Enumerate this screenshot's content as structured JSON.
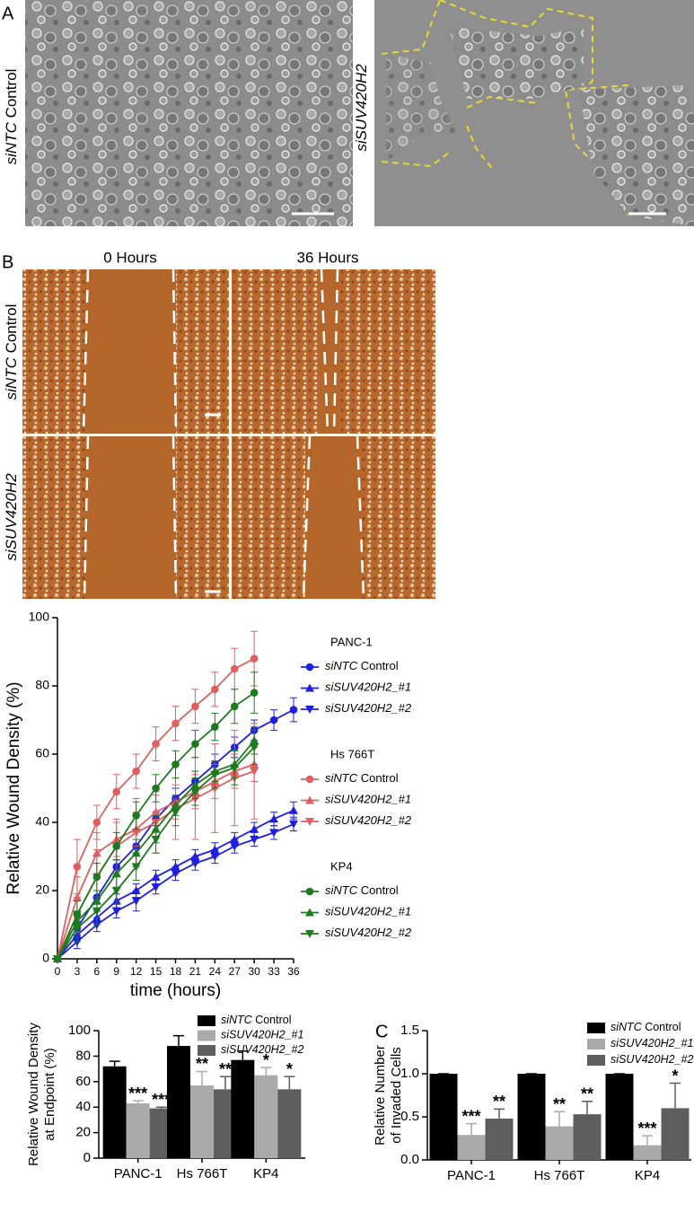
{
  "panel_labels": [
    "A",
    "B",
    "C"
  ],
  "panel_a": {
    "labels": [
      "siNTC Control",
      "siSUV420H2"
    ]
  },
  "panel_b": {
    "columns": [
      "0 Hours",
      "36 Hours"
    ],
    "rows": [
      "siNTC Control",
      "siSUV420H2"
    ]
  },
  "chart_data": [
    {
      "type": "line",
      "xlabel": "time (hours)",
      "ylabel": "Relative Wound Density (%)",
      "x": [
        0,
        3,
        6,
        9,
        12,
        15,
        18,
        21,
        24,
        27,
        30,
        33,
        36
      ],
      "xlim": [
        0,
        36
      ],
      "xticks": [
        0,
        3,
        6,
        9,
        12,
        15,
        18,
        21,
        24,
        27,
        30,
        33,
        36
      ],
      "ylim": [
        0,
        100
      ],
      "yticks": [
        0,
        20,
        40,
        60,
        80,
        100
      ],
      "groups": [
        {
          "name": "PANC-1",
          "series": [
            {
              "name": "siNTC Control",
              "color": "#1f1fe0",
              "marker": "circle",
              "values": [
                0,
                9,
                18,
                27,
                33,
                41,
                47,
                52,
                57,
                62,
                67,
                70,
                73
              ],
              "errors": [
                0,
                2,
                2,
                2,
                2,
                2,
                3,
                3,
                3,
                3,
                3,
                3,
                3.5
              ]
            },
            {
              "name": "siSUV420H2_#1",
              "color": "#1f1fe0",
              "marker": "triangle-up",
              "values": [
                0,
                7,
                12,
                17,
                20,
                24,
                27,
                30,
                32,
                35,
                38,
                41,
                43.5
              ],
              "errors": [
                0,
                2,
                2,
                2,
                2,
                2,
                2,
                2,
                2,
                2,
                2,
                2,
                2.5
              ]
            },
            {
              "name": "siSUV420H2_#2",
              "color": "#1f1fe0",
              "marker": "triangle-down",
              "values": [
                0,
                5,
                10,
                14,
                17,
                21,
                25,
                28,
                30,
                33,
                35,
                37,
                39.5
              ],
              "errors": [
                0,
                2,
                2,
                2,
                3,
                2,
                2,
                2,
                2,
                2,
                2,
                2,
                2
              ]
            }
          ]
        },
        {
          "name": "Hs 766T",
          "series": [
            {
              "name": "siNTC Control",
              "color": "#e06060",
              "marker": "circle",
              "values": [
                0,
                27,
                40,
                49,
                55,
                63,
                69,
                74,
                79,
                85,
                88,
                null,
                null
              ],
              "errors": [
                0,
                8,
                5,
                5,
                5,
                5,
                5,
                5,
                5,
                6,
                8,
                null,
                null
              ]
            },
            {
              "name": "siSUV420H2_#1",
              "color": "#e06060",
              "marker": "triangle-up",
              "values": [
                0,
                18,
                31,
                35,
                38,
                43,
                46,
                49,
                52,
                55,
                57,
                null,
                null
              ],
              "errors": [
                0,
                6,
                6,
                5,
                5,
                5,
                5,
                5,
                5,
                5,
                5,
                null,
                null
              ]
            },
            {
              "name": "siSUV420H2_#2",
              "color": "#e06060",
              "marker": "triangle-down",
              "values": [
                0,
                13,
                24,
                33,
                37,
                40,
                44,
                47,
                50,
                53,
                55,
                null,
                null
              ],
              "errors": [
                0,
                5,
                8,
                8,
                10,
                9,
                9,
                12,
                13,
                14,
                14,
                null,
                null
              ]
            }
          ]
        },
        {
          "name": "KP4",
          "series": [
            {
              "name": "siNTC Control",
              "color": "#1e7a1e",
              "marker": "circle",
              "values": [
                0,
                13,
                24,
                33,
                42,
                50,
                57,
                63,
                68,
                74,
                78,
                null,
                null
              ],
              "errors": [
                0,
                4,
                4,
                4,
                4,
                4,
                4,
                4,
                4,
                5,
                6,
                null,
                null
              ]
            },
            {
              "name": "siSUV420H2_#1",
              "color": "#1e7a1e",
              "marker": "triangle-up",
              "values": [
                0,
                11,
                17,
                25,
                31,
                38,
                45,
                51,
                55,
                57,
                64,
                null,
                null
              ],
              "errors": [
                0,
                3,
                3,
                4,
                4,
                4,
                3,
                4,
                3,
                4,
                4,
                null,
                null
              ]
            },
            {
              "name": "siSUV420H2_#2",
              "color": "#1e7a1e",
              "marker": "triangle-down",
              "values": [
                0,
                9,
                14,
                20,
                27,
                35,
                43,
                49,
                54,
                56,
                62,
                null,
                null
              ],
              "errors": [
                0,
                4,
                4,
                4,
                4,
                4,
                4,
                4,
                4,
                5,
                5,
                null,
                null
              ]
            }
          ]
        }
      ]
    },
    {
      "type": "bar",
      "ylabel": [
        "Relative Wound Density",
        "at Endpoint (%)"
      ],
      "categories": [
        "PANC-1",
        "Hs 766T",
        "KP4"
      ],
      "ylim": [
        0,
        100
      ],
      "yticks": [
        0,
        20,
        40,
        60,
        80,
        100
      ],
      "series": [
        {
          "name": "siNTC Control",
          "color": "#000000",
          "values": [
            72,
            88,
            77
          ],
          "errors": [
            4,
            8,
            7
          ]
        },
        {
          "name": "siSUV420H2_#1",
          "color": "#aaaaaa",
          "values": [
            43,
            57,
            65
          ],
          "errors": [
            2,
            11,
            6
          ],
          "annotations": [
            "***",
            "**",
            "*"
          ]
        },
        {
          "name": "siSUV420H2_#2",
          "color": "#5e5e5e",
          "values": [
            39,
            54,
            54
          ],
          "errors": [
            1,
            10,
            10
          ],
          "annotations": [
            "***",
            "**",
            "*"
          ]
        }
      ]
    },
    {
      "type": "bar",
      "ylabel": [
        "Relative Number",
        "of Invaded Cells"
      ],
      "categories": [
        "PANC-1",
        "Hs 766T",
        "KP4"
      ],
      "ylim": [
        0,
        1.5
      ],
      "yticks": [
        {
          "value": 0,
          "label": "0.0"
        },
        0.5,
        {
          "value": 1,
          "label": "1.0"
        },
        1.5
      ],
      "series": [
        {
          "name": "siNTC Control",
          "color": "#000000",
          "values": [
            1,
            1,
            1
          ],
          "errors": [
            0,
            0,
            0
          ]
        },
        {
          "name": "siSUV420H2_#1",
          "color": "#aaaaaa",
          "values": [
            0.29,
            0.39,
            0.17
          ],
          "errors": [
            0.13,
            0.17,
            0.11
          ],
          "annotations": [
            "***",
            "**",
            "***"
          ]
        },
        {
          "name": "siSUV420H2_#2",
          "color": "#5e5e5e",
          "values": [
            0.48,
            0.53,
            0.6
          ],
          "errors": [
            0.11,
            0.15,
            0.29
          ],
          "annotations": [
            "**",
            "**",
            "*"
          ]
        }
      ]
    }
  ]
}
